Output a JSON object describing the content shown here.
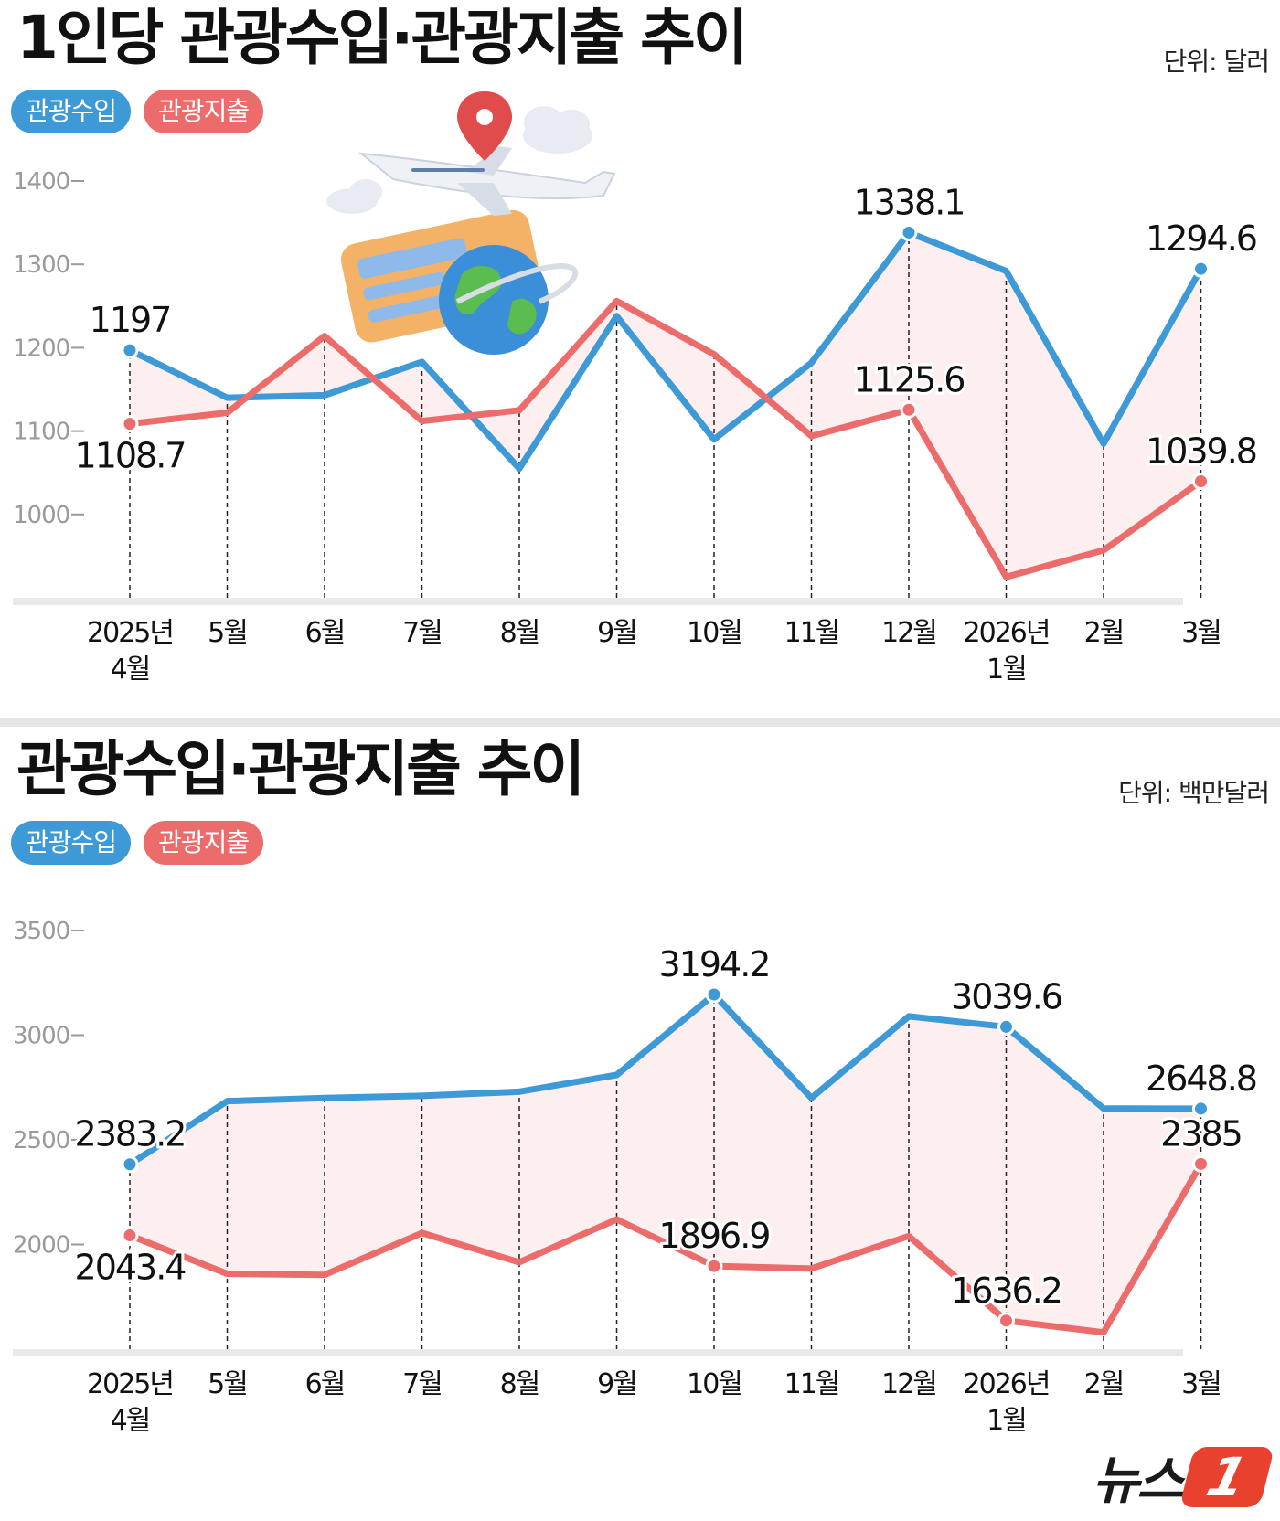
{
  "panel1": {
    "title": "1인당 관광수입·관광지출 추이",
    "unit": "단위: 달러",
    "legend": {
      "income": "관광수입",
      "expense": "관광지출"
    }
  },
  "panel2": {
    "title": "관광수입·관광지출 추이",
    "unit": "단위: 백만달러",
    "legend": {
      "income": "관광수입",
      "expense": "관광지출"
    }
  },
  "logo": {
    "text": "뉴스",
    "mark": "1"
  },
  "colors": {
    "income": "#3d9ad6",
    "expense": "#ec6b6b",
    "fill": "#fdecec"
  },
  "chart_data": [
    {
      "type": "line",
      "categories": [
        [
          "2025년",
          "4월"
        ],
        [
          "5월"
        ],
        [
          "6월"
        ],
        [
          "7월"
        ],
        [
          "8월"
        ],
        [
          "9월"
        ],
        [
          "10월"
        ],
        [
          "11월"
        ],
        [
          "12월"
        ],
        [
          "2026년",
          "1월"
        ],
        [
          "2월"
        ],
        [
          "3월"
        ]
      ],
      "yticks": [
        1000,
        1100,
        1200,
        1300,
        1400
      ],
      "ylim": [
        900,
        1400
      ],
      "series": [
        {
          "name": "관광수입",
          "key": "income",
          "values": [
            1197,
            1140,
            1143,
            1183,
            1055,
            1238,
            1090,
            1182,
            1338.1,
            1292,
            1085,
            1294.6
          ]
        },
        {
          "name": "관광지출",
          "key": "expense",
          "values": [
            1108.7,
            1122,
            1214,
            1112,
            1125,
            1256,
            1192,
            1094,
            1125.6,
            925,
            957,
            1039.8
          ]
        }
      ],
      "labels": [
        {
          "series": 0,
          "index": 0,
          "text": "1197",
          "pos": "above"
        },
        {
          "series": 1,
          "index": 0,
          "text": "1108.7",
          "pos": "below"
        },
        {
          "series": 0,
          "index": 8,
          "text": "1338.1",
          "pos": "above"
        },
        {
          "series": 1,
          "index": 8,
          "text": "1125.6",
          "pos": "above"
        },
        {
          "series": 0,
          "index": 11,
          "text": "1294.6",
          "pos": "above"
        },
        {
          "series": 1,
          "index": 11,
          "text": "1039.8",
          "pos": "above"
        }
      ],
      "grid": false,
      "legend": "top-left"
    },
    {
      "type": "line",
      "categories": [
        [
          "2025년",
          "4월"
        ],
        [
          "5월"
        ],
        [
          "6월"
        ],
        [
          "7월"
        ],
        [
          "8월"
        ],
        [
          "9월"
        ],
        [
          "10월"
        ],
        [
          "11월"
        ],
        [
          "12월"
        ],
        [
          "2026년",
          "1월"
        ],
        [
          "2월"
        ],
        [
          "3월"
        ]
      ],
      "yticks": [
        2000,
        2500,
        3000,
        3500
      ],
      "ylim": [
        1500,
        3500
      ],
      "series": [
        {
          "name": "관광수입",
          "key": "income",
          "values": [
            2383.2,
            2685,
            2700,
            2710,
            2730,
            2810,
            3194.2,
            2700,
            3090,
            3039.6,
            2650,
            2648.8
          ]
        },
        {
          "name": "관광지출",
          "key": "expense",
          "values": [
            2043.4,
            1860,
            1855,
            2055,
            1915,
            2120,
            1896.9,
            1885,
            2040,
            1636.2,
            1580,
            2385
          ]
        }
      ],
      "labels": [
        {
          "series": 0,
          "index": 0,
          "text": "2383.2",
          "pos": "above"
        },
        {
          "series": 1,
          "index": 0,
          "text": "2043.4",
          "pos": "below"
        },
        {
          "series": 0,
          "index": 6,
          "text": "3194.2",
          "pos": "above"
        },
        {
          "series": 1,
          "index": 6,
          "text": "1896.9",
          "pos": "above"
        },
        {
          "series": 0,
          "index": 9,
          "text": "3039.6",
          "pos": "above"
        },
        {
          "series": 1,
          "index": 9,
          "text": "1636.2",
          "pos": "above"
        },
        {
          "series": 0,
          "index": 11,
          "text": "2648.8",
          "pos": "above"
        },
        {
          "series": 1,
          "index": 11,
          "text": "2385",
          "pos": "above"
        }
      ],
      "grid": false,
      "legend": "top-left"
    }
  ]
}
